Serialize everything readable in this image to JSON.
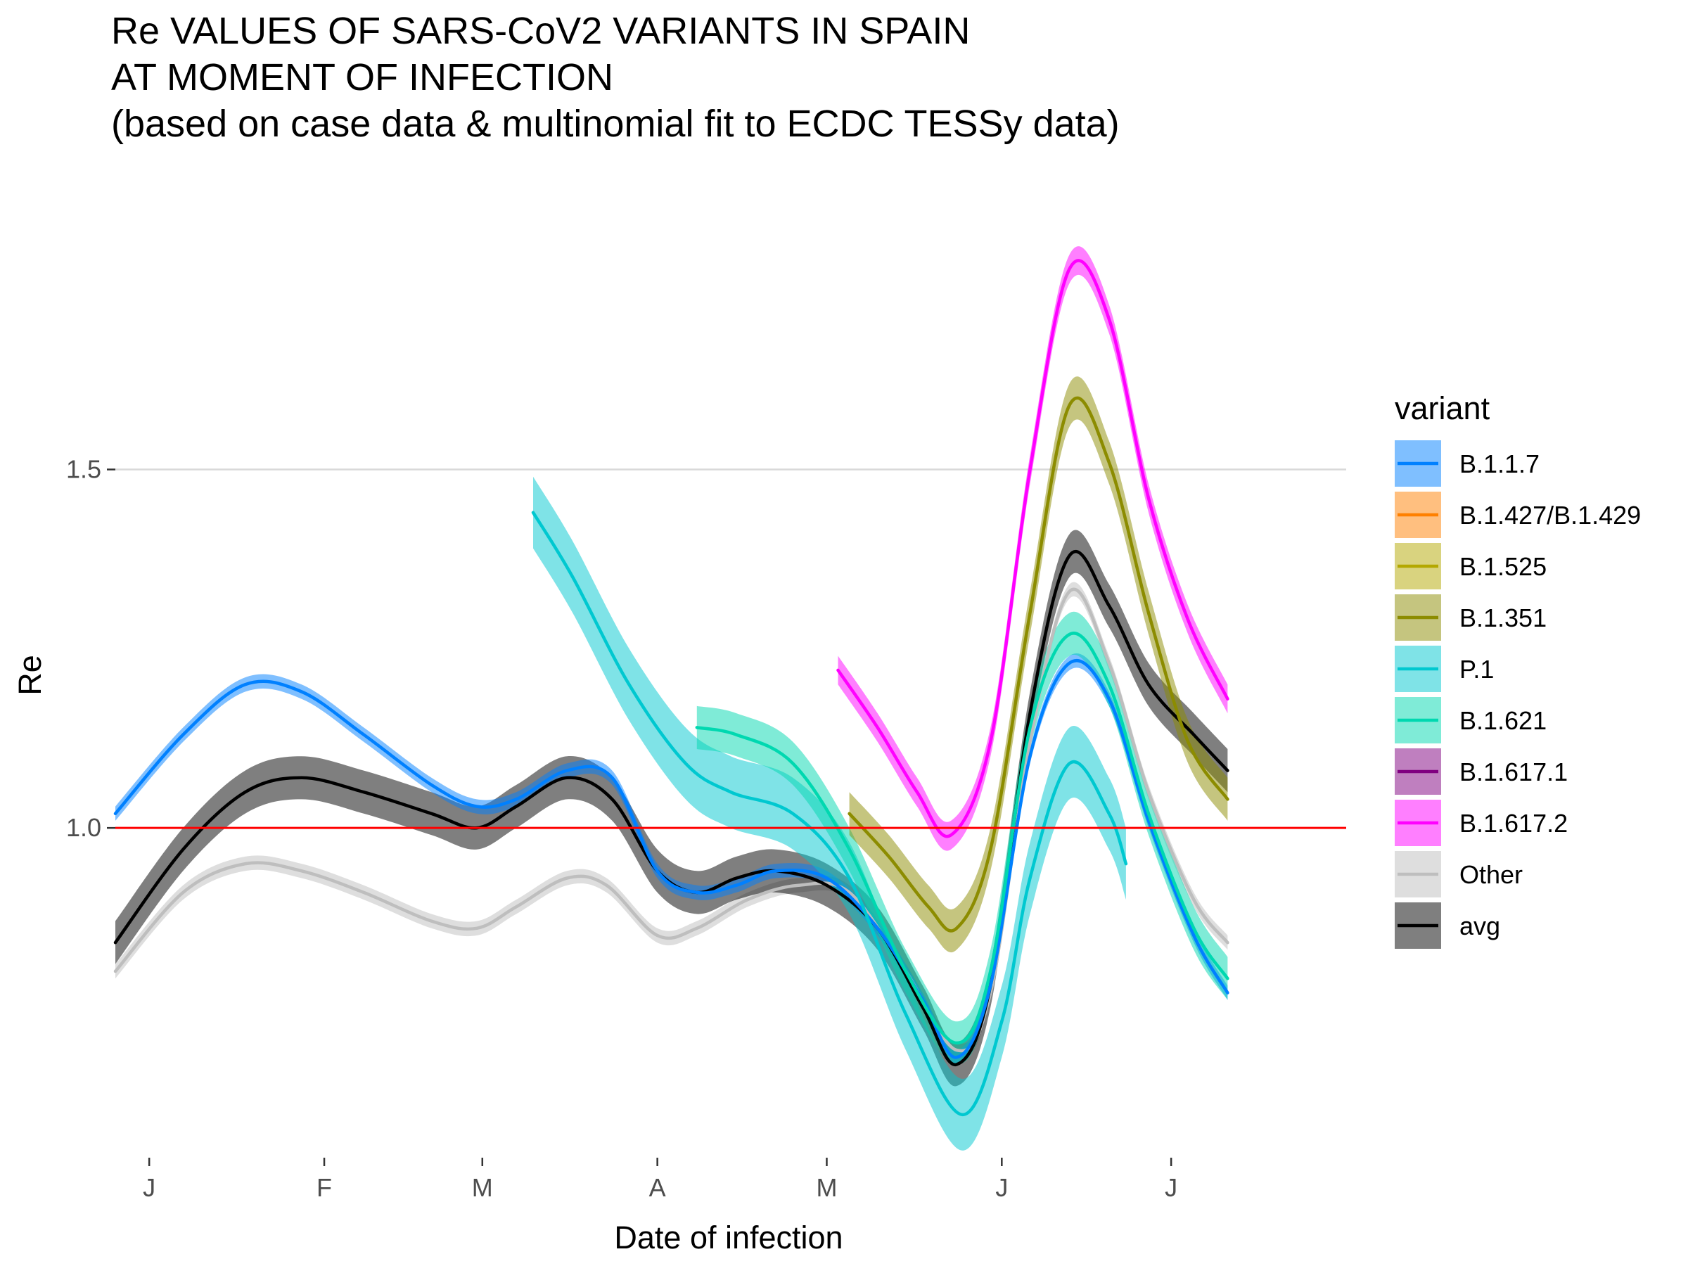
{
  "chart_data": {
    "type": "line",
    "title": [
      "Re VALUES OF SARS-CoV2 VARIANTS IN SPAIN",
      "AT MOMENT OF INFECTION",
      "(based on case data & multinomial fit to ECDC TESSy data)"
    ],
    "xlabel": "Date of infection",
    "ylabel": "Re",
    "x_ticks": [
      {
        "date": "2021-01-01",
        "label": "J"
      },
      {
        "date": "2021-02-01",
        "label": "F"
      },
      {
        "date": "2021-03-01",
        "label": "M"
      },
      {
        "date": "2021-04-01",
        "label": "A"
      },
      {
        "date": "2021-05-01",
        "label": "M"
      },
      {
        "date": "2021-06-01",
        "label": "J"
      },
      {
        "date": "2021-07-01",
        "label": "J"
      }
    ],
    "xlim": [
      "2020-12-26",
      "2021-08-01"
    ],
    "ylim": [
      0.54,
      1.89
    ],
    "y_ticks": [
      1.0,
      1.5
    ],
    "y_tick_labels": [
      "1.0",
      "1.5"
    ],
    "reference_line": {
      "y": 1.0,
      "color": "#FF0000"
    },
    "grid": "horizontal major only",
    "legend": {
      "title": "variant",
      "position": "right"
    },
    "series": [
      {
        "name": "B.1.1.7",
        "color": "#0080FF",
        "band": 0.01,
        "points": [
          [
            "2020-12-26",
            1.02
          ],
          [
            "2021-01-07",
            1.13
          ],
          [
            "2021-01-18",
            1.2
          ],
          [
            "2021-01-28",
            1.19
          ],
          [
            "2021-02-08",
            1.13
          ],
          [
            "2021-02-20",
            1.06
          ],
          [
            "2021-02-28",
            1.03
          ],
          [
            "2021-03-07",
            1.04
          ],
          [
            "2021-03-16",
            1.08
          ],
          [
            "2021-03-24",
            1.07
          ],
          [
            "2021-04-01",
            0.94
          ],
          [
            "2021-04-08",
            0.91
          ],
          [
            "2021-04-15",
            0.92
          ],
          [
            "2021-04-22",
            0.94
          ],
          [
            "2021-05-01",
            0.93
          ],
          [
            "2021-05-10",
            0.86
          ],
          [
            "2021-05-18",
            0.76
          ],
          [
            "2021-05-24",
            0.68
          ],
          [
            "2021-05-30",
            0.78
          ],
          [
            "2021-06-06",
            1.1
          ],
          [
            "2021-06-13",
            1.23
          ],
          [
            "2021-06-20",
            1.18
          ],
          [
            "2021-06-27",
            1.01
          ],
          [
            "2021-07-05",
            0.85
          ],
          [
            "2021-07-11",
            0.77
          ]
        ]
      },
      {
        "name": "B.1.427/B.1.429",
        "color": "#FF8000",
        "band": 0,
        "points": []
      },
      {
        "name": "B.1.525",
        "color": "#B4A800",
        "band": 0,
        "points": []
      },
      {
        "name": "B.1.351",
        "color": "#8C8C00",
        "band": 0.03,
        "points": [
          [
            "2021-05-05",
            1.02
          ],
          [
            "2021-05-12",
            0.96
          ],
          [
            "2021-05-19",
            0.89
          ],
          [
            "2021-05-24",
            0.86
          ],
          [
            "2021-05-30",
            0.97
          ],
          [
            "2021-06-06",
            1.3
          ],
          [
            "2021-06-13",
            1.59
          ],
          [
            "2021-06-20",
            1.51
          ],
          [
            "2021-06-27",
            1.3
          ],
          [
            "2021-07-04",
            1.12
          ],
          [
            "2021-07-11",
            1.04
          ]
        ]
      },
      {
        "name": "P.1",
        "color": "#00C8D0",
        "band": 0.05,
        "points": [
          [
            "2021-03-10",
            1.44
          ],
          [
            "2021-03-17",
            1.35
          ],
          [
            "2021-03-27",
            1.2
          ],
          [
            "2021-04-06",
            1.09
          ],
          [
            "2021-04-14",
            1.05
          ],
          [
            "2021-04-25",
            1.02
          ],
          [
            "2021-05-05",
            0.93
          ],
          [
            "2021-05-15",
            0.74
          ],
          [
            "2021-05-25",
            0.6
          ],
          [
            "2021-06-01",
            0.73
          ],
          [
            "2021-06-06",
            0.93
          ],
          [
            "2021-06-13",
            1.09
          ],
          [
            "2021-06-20",
            1.02
          ],
          [
            "2021-06-23",
            0.95
          ]
        ]
      },
      {
        "name": "B.1.621",
        "color": "#00D8B0",
        "band": 0.03,
        "points": [
          [
            "2021-04-08",
            1.14
          ],
          [
            "2021-04-15",
            1.13
          ],
          [
            "2021-04-25",
            1.09
          ],
          [
            "2021-05-05",
            0.97
          ],
          [
            "2021-05-15",
            0.8
          ],
          [
            "2021-05-24",
            0.7
          ],
          [
            "2021-05-30",
            0.8
          ],
          [
            "2021-06-06",
            1.14
          ],
          [
            "2021-06-13",
            1.27
          ],
          [
            "2021-06-20",
            1.2
          ],
          [
            "2021-06-27",
            1.02
          ],
          [
            "2021-07-05",
            0.86
          ],
          [
            "2021-07-11",
            0.79
          ]
        ]
      },
      {
        "name": "B.1.617.1",
        "color": "#800080",
        "band": 0,
        "points": []
      },
      {
        "name": "B.1.617.2",
        "color": "#FF00FF",
        "band": 0.02,
        "points": [
          [
            "2021-05-03",
            1.22
          ],
          [
            "2021-05-10",
            1.14
          ],
          [
            "2021-05-17",
            1.05
          ],
          [
            "2021-05-23",
            0.99
          ],
          [
            "2021-05-30",
            1.12
          ],
          [
            "2021-06-06",
            1.5
          ],
          [
            "2021-06-13",
            1.78
          ],
          [
            "2021-06-20",
            1.71
          ],
          [
            "2021-06-27",
            1.46
          ],
          [
            "2021-07-04",
            1.29
          ],
          [
            "2021-07-11",
            1.18
          ]
        ]
      },
      {
        "name": "Other",
        "color": "#BEBEBE",
        "band": 0.01,
        "points": [
          [
            "2020-12-26",
            0.8
          ],
          [
            "2021-01-07",
            0.91
          ],
          [
            "2021-01-18",
            0.95
          ],
          [
            "2021-01-28",
            0.94
          ],
          [
            "2021-02-08",
            0.91
          ],
          [
            "2021-02-20",
            0.87
          ],
          [
            "2021-02-28",
            0.86
          ],
          [
            "2021-03-07",
            0.89
          ],
          [
            "2021-03-16",
            0.93
          ],
          [
            "2021-03-23",
            0.92
          ],
          [
            "2021-04-01",
            0.85
          ],
          [
            "2021-04-08",
            0.86
          ],
          [
            "2021-04-17",
            0.9
          ],
          [
            "2021-04-26",
            0.92
          ],
          [
            "2021-05-05",
            0.91
          ],
          [
            "2021-05-15",
            0.8
          ],
          [
            "2021-05-24",
            0.69
          ],
          [
            "2021-05-30",
            0.77
          ],
          [
            "2021-06-06",
            1.12
          ],
          [
            "2021-06-13",
            1.33
          ],
          [
            "2021-06-20",
            1.23
          ],
          [
            "2021-06-27",
            1.05
          ],
          [
            "2021-07-05",
            0.9
          ],
          [
            "2021-07-11",
            0.84
          ]
        ]
      },
      {
        "name": "avg",
        "color": "#000000",
        "band": 0.03,
        "points": [
          [
            "2020-12-26",
            0.84
          ],
          [
            "2021-01-07",
            0.97
          ],
          [
            "2021-01-18",
            1.05
          ],
          [
            "2021-01-28",
            1.07
          ],
          [
            "2021-02-08",
            1.05
          ],
          [
            "2021-02-20",
            1.02
          ],
          [
            "2021-02-28",
            1.0
          ],
          [
            "2021-03-07",
            1.03
          ],
          [
            "2021-03-16",
            1.07
          ],
          [
            "2021-03-24",
            1.04
          ],
          [
            "2021-04-01",
            0.94
          ],
          [
            "2021-04-08",
            0.91
          ],
          [
            "2021-04-15",
            0.93
          ],
          [
            "2021-04-22",
            0.94
          ],
          [
            "2021-05-01",
            0.92
          ],
          [
            "2021-05-10",
            0.86
          ],
          [
            "2021-05-18",
            0.75
          ],
          [
            "2021-05-24",
            0.67
          ],
          [
            "2021-05-30",
            0.78
          ],
          [
            "2021-06-06",
            1.16
          ],
          [
            "2021-06-13",
            1.38
          ],
          [
            "2021-06-20",
            1.31
          ],
          [
            "2021-06-27",
            1.2
          ],
          [
            "2021-07-05",
            1.13
          ],
          [
            "2021-07-11",
            1.08
          ]
        ]
      }
    ]
  }
}
